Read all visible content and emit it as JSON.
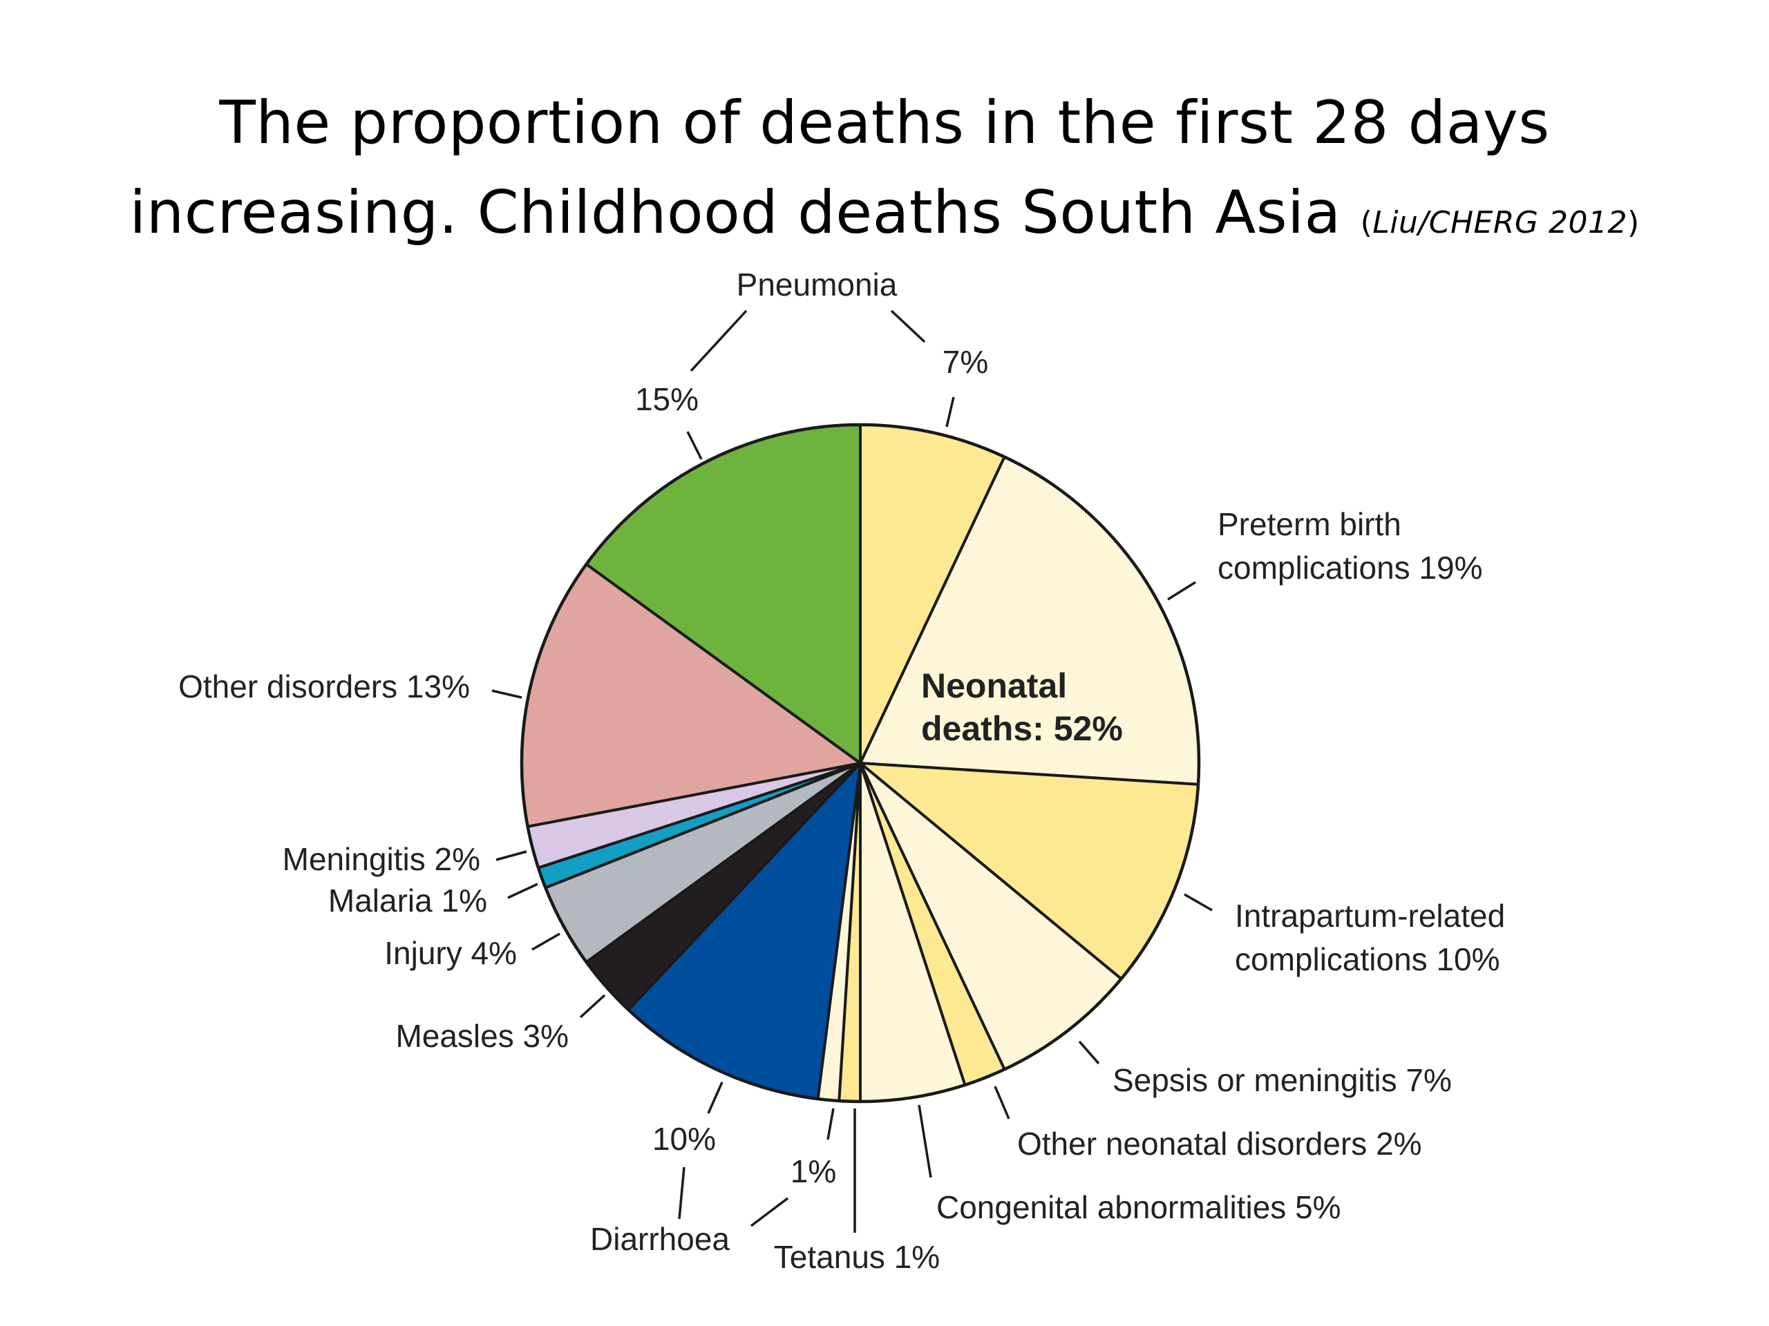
{
  "slide": {
    "title_line1": "The proportion of deaths in the first 28 days",
    "title_line2": "increasing. Childhood deaths South Asia",
    "citation_open": "(",
    "citation": "Liu/CHERG 2012",
    "citation_close": ")"
  },
  "chart_data": {
    "type": "pie",
    "title": "",
    "center_label_line1": "Neonatal",
    "center_label_line2": "deaths: 52%",
    "slices": [
      {
        "label": "Pneumonia (neonatal)",
        "value": 7,
        "group": "neonatal",
        "color": "#fde992"
      },
      {
        "label": "Preterm birth complications",
        "value": 19,
        "group": "neonatal",
        "color": "#fdf6d8"
      },
      {
        "label": "Intrapartum-related complications",
        "value": 10,
        "group": "neonatal",
        "color": "#fde992"
      },
      {
        "label": "Sepsis or meningitis",
        "value": 7,
        "group": "neonatal",
        "color": "#fdf6d8"
      },
      {
        "label": "Other neonatal disorders",
        "value": 2,
        "group": "neonatal",
        "color": "#fde992"
      },
      {
        "label": "Congenital abnormalities",
        "value": 5,
        "group": "neonatal",
        "color": "#fdf6d8"
      },
      {
        "label": "Tetanus",
        "value": 1,
        "group": "neonatal",
        "color": "#fde992"
      },
      {
        "label": "Diarrhoea (neonatal)",
        "value": 1,
        "group": "neonatal",
        "color": "#fdf6d8"
      },
      {
        "label": "Diarrhoea",
        "value": 10,
        "group": "postneonatal",
        "color": "#004f9e"
      },
      {
        "label": "Measles",
        "value": 3,
        "group": "postneonatal",
        "color": "#231f20"
      },
      {
        "label": "Injury",
        "value": 4,
        "group": "postneonatal",
        "color": "#b4b9bf"
      },
      {
        "label": "Malaria",
        "value": 1,
        "group": "postneonatal",
        "color": "#129fc4"
      },
      {
        "label": "Meningitis",
        "value": 2,
        "group": "postneonatal",
        "color": "#d8c8e6"
      },
      {
        "label": "Other disorders",
        "value": 13,
        "group": "postneonatal",
        "color": "#e0a59e"
      },
      {
        "label": "Pneumonia",
        "value": 15,
        "group": "postneonatal",
        "color": "#6fb33f"
      }
    ],
    "labels": [
      {
        "id": "pneumonia-name",
        "text": "Pneumonia"
      },
      {
        "id": "pneumonia-post-pct",
        "text": "15%"
      },
      {
        "id": "pneumonia-neo-pct",
        "text": "7%"
      },
      {
        "id": "preterm-1",
        "text": "Preterm birth"
      },
      {
        "id": "preterm-2",
        "text": "complications 19%"
      },
      {
        "id": "intrapartum-1",
        "text": "Intrapartum-related"
      },
      {
        "id": "intrapartum-2",
        "text": "complications 10%"
      },
      {
        "id": "sepsis",
        "text": "Sepsis or meningitis 7%"
      },
      {
        "id": "other-neonatal",
        "text": "Other neonatal disorders 2%"
      },
      {
        "id": "congenital",
        "text": "Congenital abnormalities 5%"
      },
      {
        "id": "tetanus",
        "text": "Tetanus 1%"
      },
      {
        "id": "diarrhoea-neo-pct",
        "text": "1%"
      },
      {
        "id": "diarrhoea-post-pct",
        "text": "10%"
      },
      {
        "id": "diarrhoea-name",
        "text": "Diarrhoea"
      },
      {
        "id": "measles",
        "text": "Measles 3%"
      },
      {
        "id": "injury",
        "text": "Injury 4%"
      },
      {
        "id": "malaria",
        "text": "Malaria 1%"
      },
      {
        "id": "meningitis",
        "text": "Meningitis 2%"
      },
      {
        "id": "other-disorders",
        "text": "Other disorders 13%"
      }
    ]
  }
}
